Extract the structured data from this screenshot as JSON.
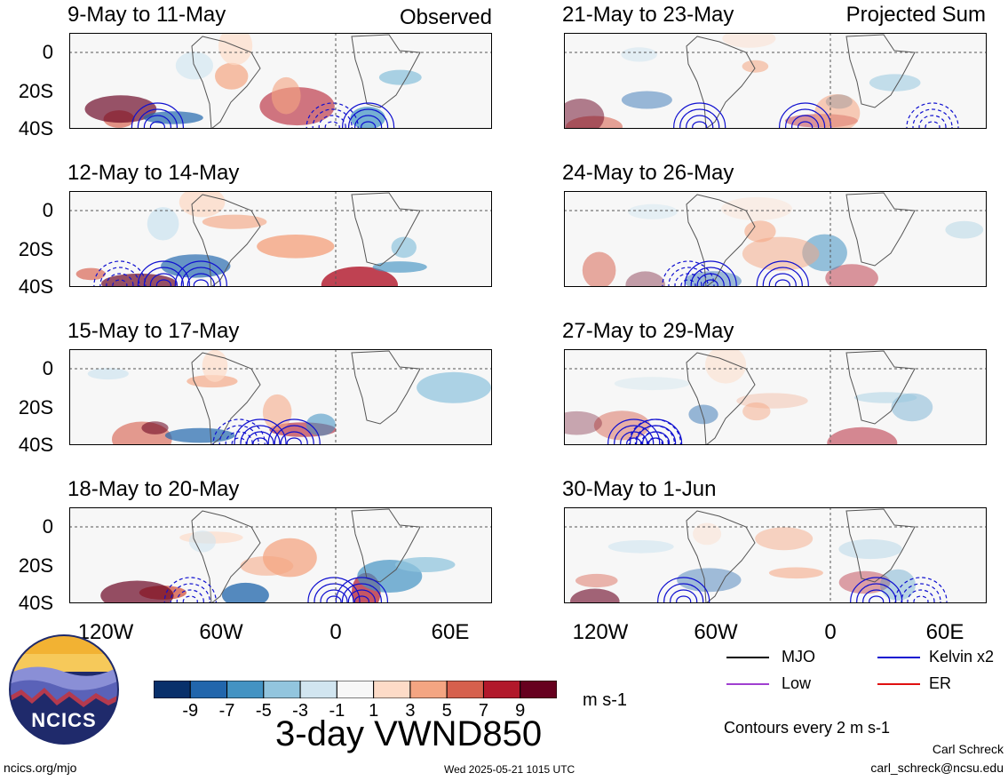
{
  "figure": {
    "title": "3-day VWND850",
    "units": "m s-1",
    "contour_note": "Contours every 2 m s-1",
    "timestamp": "Wed 2025-05-21 1015 UTC",
    "footer_url": "ncics.org/mjo",
    "author": "Carl Schreck",
    "email": "carl_schreck@ncsu.edu"
  },
  "columns": {
    "left_label": "Observed",
    "right_label": "Projected Sum"
  },
  "panels": {
    "left": [
      {
        "title": "9-May to 11-May"
      },
      {
        "title": "12-May to 14-May"
      },
      {
        "title": "15-May to 17-May"
      },
      {
        "title": "18-May to 20-May"
      }
    ],
    "right": [
      {
        "title": "21-May to 23-May"
      },
      {
        "title": "24-May to 26-May"
      },
      {
        "title": "27-May to 29-May"
      },
      {
        "title": "30-May to 1-Jun"
      }
    ]
  },
  "axes": {
    "lat_labels": [
      "0",
      "20S",
      "40S"
    ],
    "lon_labels": [
      "120W",
      "60W",
      "0",
      "60E"
    ]
  },
  "colorbar": {
    "labels": [
      "-9",
      "-7",
      "-5",
      "-3",
      "-1",
      "1",
      "3",
      "5",
      "7",
      "9"
    ],
    "colors": [
      "#08306b",
      "#2166ac",
      "#4393c3",
      "#92c5de",
      "#d1e5f0",
      "#f7f7f7",
      "#fddbc7",
      "#f4a582",
      "#d6604d",
      "#b2182b",
      "#67001f"
    ]
  },
  "legend": {
    "items": [
      {
        "label": "MJO",
        "color": "#000000"
      },
      {
        "label": "Kelvin x2",
        "color": "#1010d0"
      },
      {
        "label": "Low",
        "color": "#a040d0"
      },
      {
        "label": "ER",
        "color": "#e01010"
      }
    ]
  },
  "logo": {
    "text": "NCICS"
  }
}
